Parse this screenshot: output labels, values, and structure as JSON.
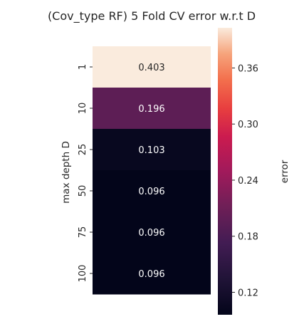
{
  "chart_data": {
    "type": "heatmap",
    "title": "(Cov_type RF) 5 Fold CV error w.r.t D",
    "ylabel": "max depth D",
    "colorbar_label": "error",
    "rows": [
      "1",
      "10",
      "25",
      "50",
      "75",
      "100"
    ],
    "values": [
      0.403,
      0.196,
      0.103,
      0.096,
      0.096,
      0.096
    ],
    "cell_labels": [
      "0.403",
      "0.196",
      "0.103",
      "0.096",
      "0.096",
      "0.096"
    ],
    "colorbar_range": [
      0.096,
      0.403
    ],
    "colorbar_ticks": [
      "0.36",
      "0.30",
      "0.24",
      "0.18",
      "0.12"
    ],
    "colormap": "rocket",
    "colors": {
      "text_dark": "#262626",
      "text_on_light": "#262626",
      "text_on_dark": "#ffffff"
    }
  }
}
